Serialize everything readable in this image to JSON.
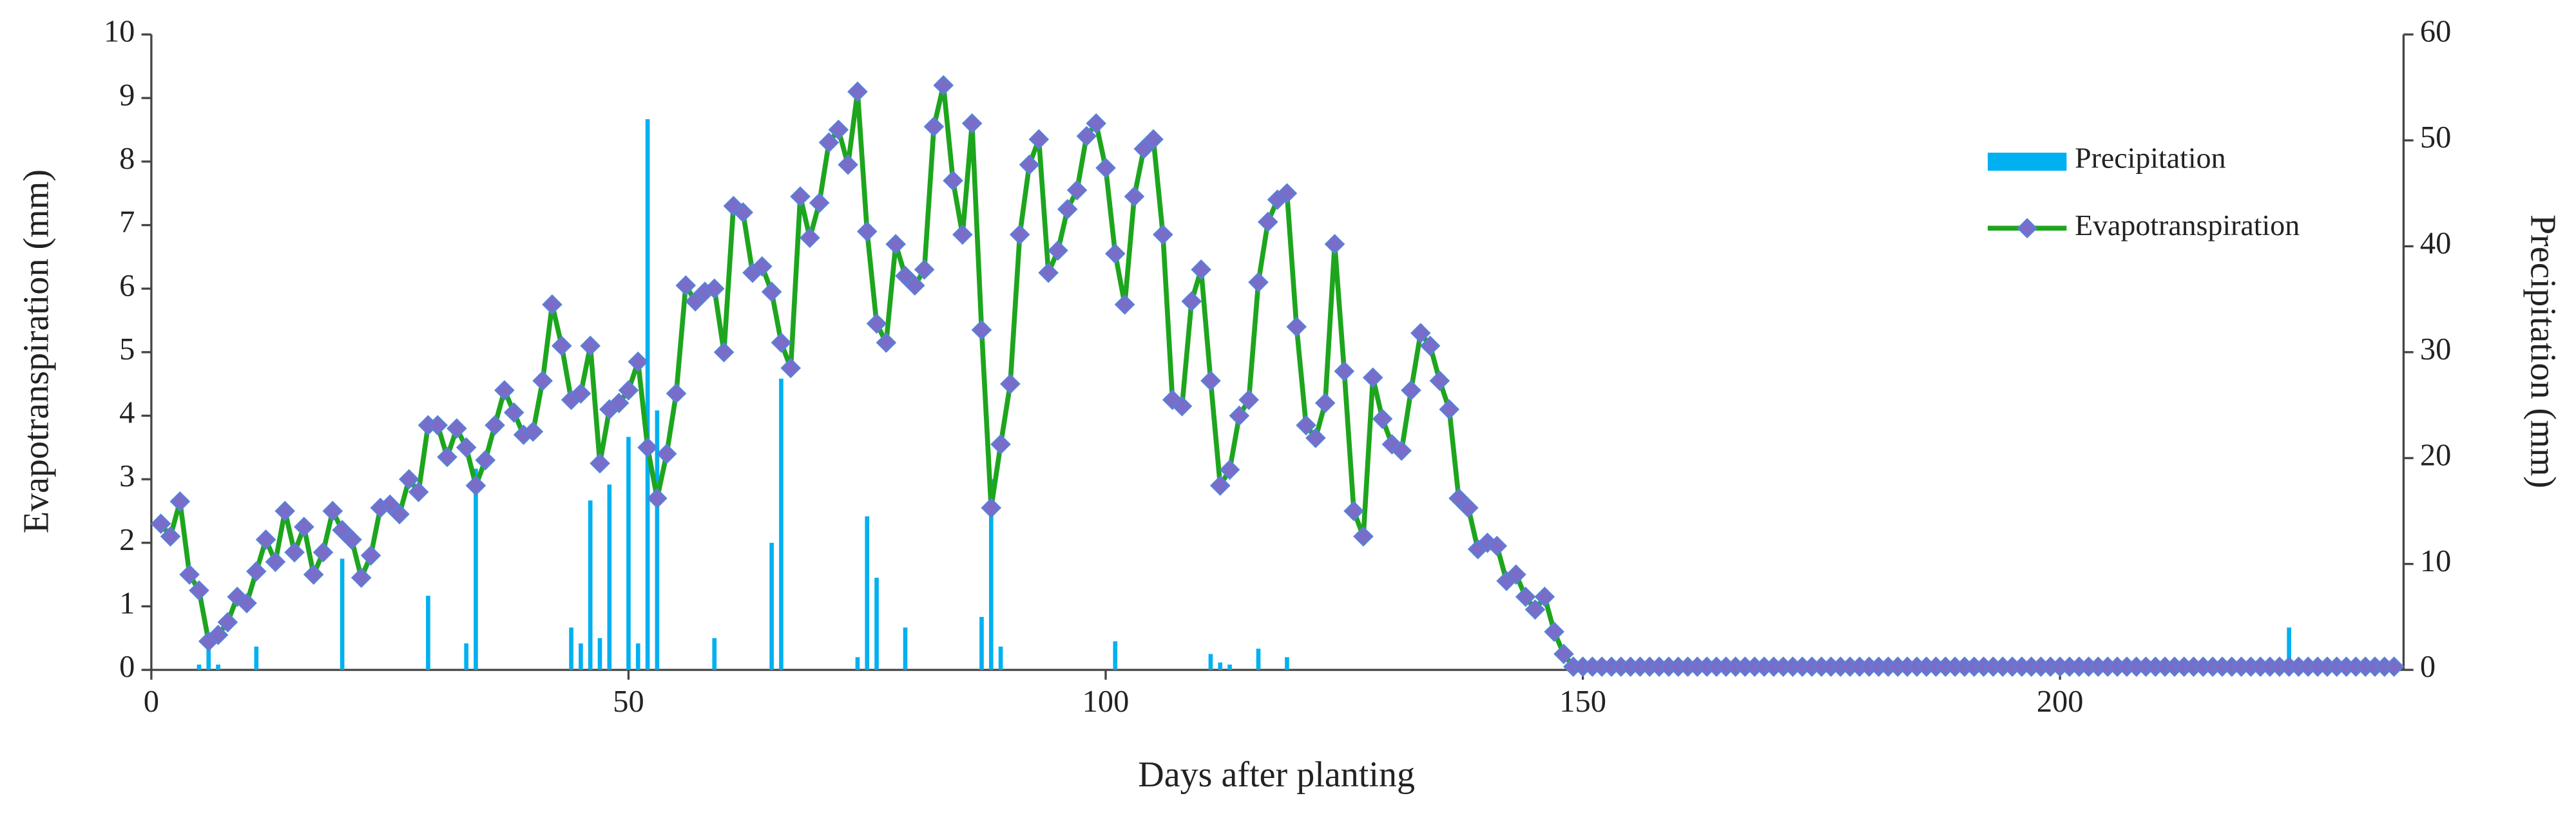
{
  "chart_data": {
    "type": "bar_line",
    "xlabel": "Days after planting",
    "ylabel": "Evapotranspiration (mm)",
    "y2label": "Precipitation (mm)",
    "xlim": [
      0,
      236
    ],
    "xticks": [
      0,
      50,
      100,
      150,
      200
    ],
    "ylim": [
      0,
      10
    ],
    "yticks": [
      0,
      1,
      2,
      3,
      4,
      5,
      6,
      7,
      8,
      9,
      10
    ],
    "y2lim": [
      0,
      60
    ],
    "y2ticks": [
      0,
      10,
      20,
      30,
      40,
      50,
      60
    ],
    "grid": false,
    "legend": "upper right",
    "series": [
      {
        "name": "Precipitation",
        "type": "bar",
        "axis": "y2",
        "color": "#00b0f0",
        "x": [
          5,
          6,
          7,
          11,
          20,
          29,
          33,
          34,
          44,
          45,
          46,
          47,
          48,
          50,
          51,
          52,
          53,
          59,
          65,
          66,
          74,
          75,
          76,
          79,
          87,
          88,
          89,
          101,
          111,
          112,
          113,
          116,
          119,
          224
        ],
        "values": [
          0.5,
          2,
          0.5,
          2.2,
          10.5,
          7,
          2.5,
          19,
          4,
          2.5,
          16,
          3,
          17.5,
          22,
          2.5,
          52,
          24.5,
          3,
          12,
          27.5,
          1.2,
          14.5,
          8.7,
          4,
          5,
          18,
          2.2,
          2.7,
          1.5,
          0.7,
          0.5,
          2,
          1.2,
          4
        ]
      },
      {
        "name": "Evapotranspiration",
        "type": "line",
        "color": "#1ea51e",
        "marker_color": "#7a6cc9",
        "x": [
          1,
          2,
          3,
          4,
          5,
          6,
          7,
          8,
          9,
          10,
          11,
          12,
          13,
          14,
          15,
          16,
          17,
          18,
          19,
          20,
          21,
          22,
          23,
          24,
          25,
          26,
          27,
          28,
          29,
          30,
          31,
          32,
          33,
          34,
          35,
          36,
          37,
          38,
          39,
          40,
          41,
          42,
          43,
          44,
          45,
          46,
          47,
          48,
          49,
          50,
          51,
          52,
          53,
          54,
          55,
          56,
          57,
          58,
          59,
          60,
          61,
          62,
          63,
          64,
          65,
          66,
          67,
          68,
          69,
          70,
          71,
          72,
          73,
          74,
          75,
          76,
          77,
          78,
          79,
          80,
          81,
          82,
          83,
          84,
          85,
          86,
          87,
          88,
          89,
          90,
          91,
          92,
          93,
          94,
          95,
          96,
          97,
          98,
          99,
          100,
          101,
          102,
          103,
          104,
          105,
          106,
          107,
          108,
          109,
          110,
          111,
          112,
          113,
          114,
          115,
          116,
          117,
          118,
          119,
          120,
          121,
          122,
          123,
          124,
          125,
          126,
          127,
          128,
          129,
          130,
          131,
          132,
          133,
          134,
          135,
          136,
          137,
          138,
          139,
          140,
          141,
          142,
          143,
          144,
          145,
          146,
          147,
          148,
          149,
          150,
          151,
          152,
          153,
          154,
          155,
          156,
          157,
          158,
          159,
          160,
          161,
          162,
          163,
          164,
          165,
          166,
          167,
          168,
          169,
          170,
          171,
          172,
          173,
          174,
          175,
          176,
          177,
          178,
          179,
          180,
          181,
          182,
          183,
          184,
          185,
          186,
          187,
          188,
          189,
          190,
          191,
          192,
          193,
          194,
          195,
          196,
          197,
          198,
          199,
          200,
          201,
          202,
          203,
          204,
          205,
          206,
          207,
          208,
          209,
          210,
          211,
          212,
          213,
          214,
          215,
          216,
          217,
          218,
          219,
          220,
          221,
          222,
          223,
          224,
          225,
          226,
          227,
          228,
          229,
          230,
          231,
          232,
          233,
          234,
          235
        ],
        "values": [
          2.3,
          2.1,
          2.65,
          1.5,
          1.25,
          0.45,
          0.55,
          0.75,
          1.15,
          1.05,
          1.55,
          2.05,
          1.7,
          2.5,
          1.85,
          2.25,
          1.5,
          1.85,
          2.5,
          2.2,
          2.05,
          1.45,
          1.8,
          2.55,
          2.6,
          2.45,
          3.0,
          2.8,
          3.85,
          3.85,
          3.35,
          3.8,
          3.5,
          2.9,
          3.3,
          3.85,
          4.4,
          4.05,
          3.7,
          3.75,
          4.55,
          5.75,
          5.1,
          4.25,
          4.35,
          5.1,
          3.25,
          4.1,
          4.2,
          4.4,
          4.85,
          3.5,
          2.7,
          3.4,
          4.35,
          6.05,
          5.8,
          5.95,
          6.0,
          5.0,
          7.3,
          7.2,
          6.25,
          6.35,
          5.95,
          5.15,
          4.75,
          7.45,
          6.8,
          7.35,
          8.3,
          8.5,
          7.95,
          9.1,
          6.9,
          5.45,
          5.15,
          6.7,
          6.2,
          6.05,
          6.3,
          8.55,
          9.2,
          7.7,
          6.85,
          8.6,
          5.35,
          2.55,
          3.55,
          4.5,
          6.85,
          7.95,
          8.35,
          6.25,
          6.6,
          7.25,
          7.55,
          8.4,
          8.6,
          7.9,
          6.55,
          5.75,
          7.45,
          8.2,
          8.35,
          6.85,
          4.25,
          4.15,
          5.8,
          6.3,
          4.55,
          2.9,
          3.15,
          4.0,
          4.25,
          6.1,
          7.05,
          7.4,
          7.5,
          5.4,
          3.85,
          3.65,
          4.2,
          6.7,
          4.7,
          2.5,
          2.1,
          4.6,
          3.95,
          3.55,
          3.45,
          4.4,
          5.3,
          5.1,
          4.55,
          4.1,
          2.7,
          2.55,
          1.9,
          2.0,
          1.95,
          1.4,
          1.5,
          1.15,
          0.95,
          1.15,
          0.6,
          0.25,
          0.05,
          0.05,
          0.05,
          0.05,
          0.05,
          0.05,
          0.05,
          0.05,
          0.05,
          0.05,
          0.05,
          0.05,
          0.05,
          0.05,
          0.05,
          0.05,
          0.05,
          0.05,
          0.05,
          0.05,
          0.05,
          0.05,
          0.05,
          0.05,
          0.05,
          0.05,
          0.05,
          0.05,
          0.05,
          0.05,
          0.05,
          0.05,
          0.05,
          0.05,
          0.05,
          0.05,
          0.05,
          0.05,
          0.05,
          0.05,
          0.05,
          0.05,
          0.05,
          0.05,
          0.05,
          0.05,
          0.05,
          0.05,
          0.05,
          0.05,
          0.05,
          0.05,
          0.05,
          0.05,
          0.05,
          0.05,
          0.05,
          0.05,
          0.05,
          0.05,
          0.05,
          0.05,
          0.05,
          0.05,
          0.05,
          0.05,
          0.05,
          0.05,
          0.05,
          0.05,
          0.05,
          0.05,
          0.05,
          0.05,
          0.05,
          0.05,
          0.05,
          0.05,
          0.05,
          0.05,
          0.05,
          0.05,
          0.05,
          0.05,
          0.05,
          0.05,
          0.05
        ]
      }
    ]
  }
}
